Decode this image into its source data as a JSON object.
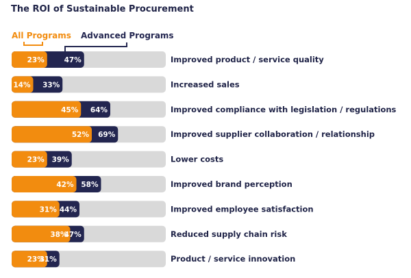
{
  "chart_data": {
    "type": "bar",
    "title": "The ROI of Sustainable Procurement",
    "xlim": [
      0,
      100
    ],
    "categories": [
      "Improved product / service quality",
      "Increased sales",
      "Improved compliance with legislation / regulations",
      "Improved supplier collaboration / relationship",
      "Lower costs",
      "Improved brand perception",
      "Improved employee satisfaction",
      "Reduced supply chain risk",
      "Product / service innovation"
    ],
    "series": [
      {
        "name": "All Programs",
        "color": "#f28c0f",
        "values": [
          23,
          14,
          45,
          52,
          23,
          42,
          31,
          38,
          23
        ],
        "labels": [
          "23%",
          "14%",
          "45%",
          "52%",
          "23%",
          "42%",
          "31%",
          "38%",
          "23%"
        ]
      },
      {
        "name": "Advanced Programs",
        "color": "#232650",
        "values": [
          47,
          33,
          64,
          69,
          39,
          58,
          44,
          47,
          31
        ],
        "labels": [
          "47%",
          "33%",
          "64%",
          "69%",
          "39%",
          "58%",
          "44%",
          "47%",
          "31%"
        ]
      }
    ],
    "track_color": "#d9d9d9",
    "legend": "top-left"
  }
}
